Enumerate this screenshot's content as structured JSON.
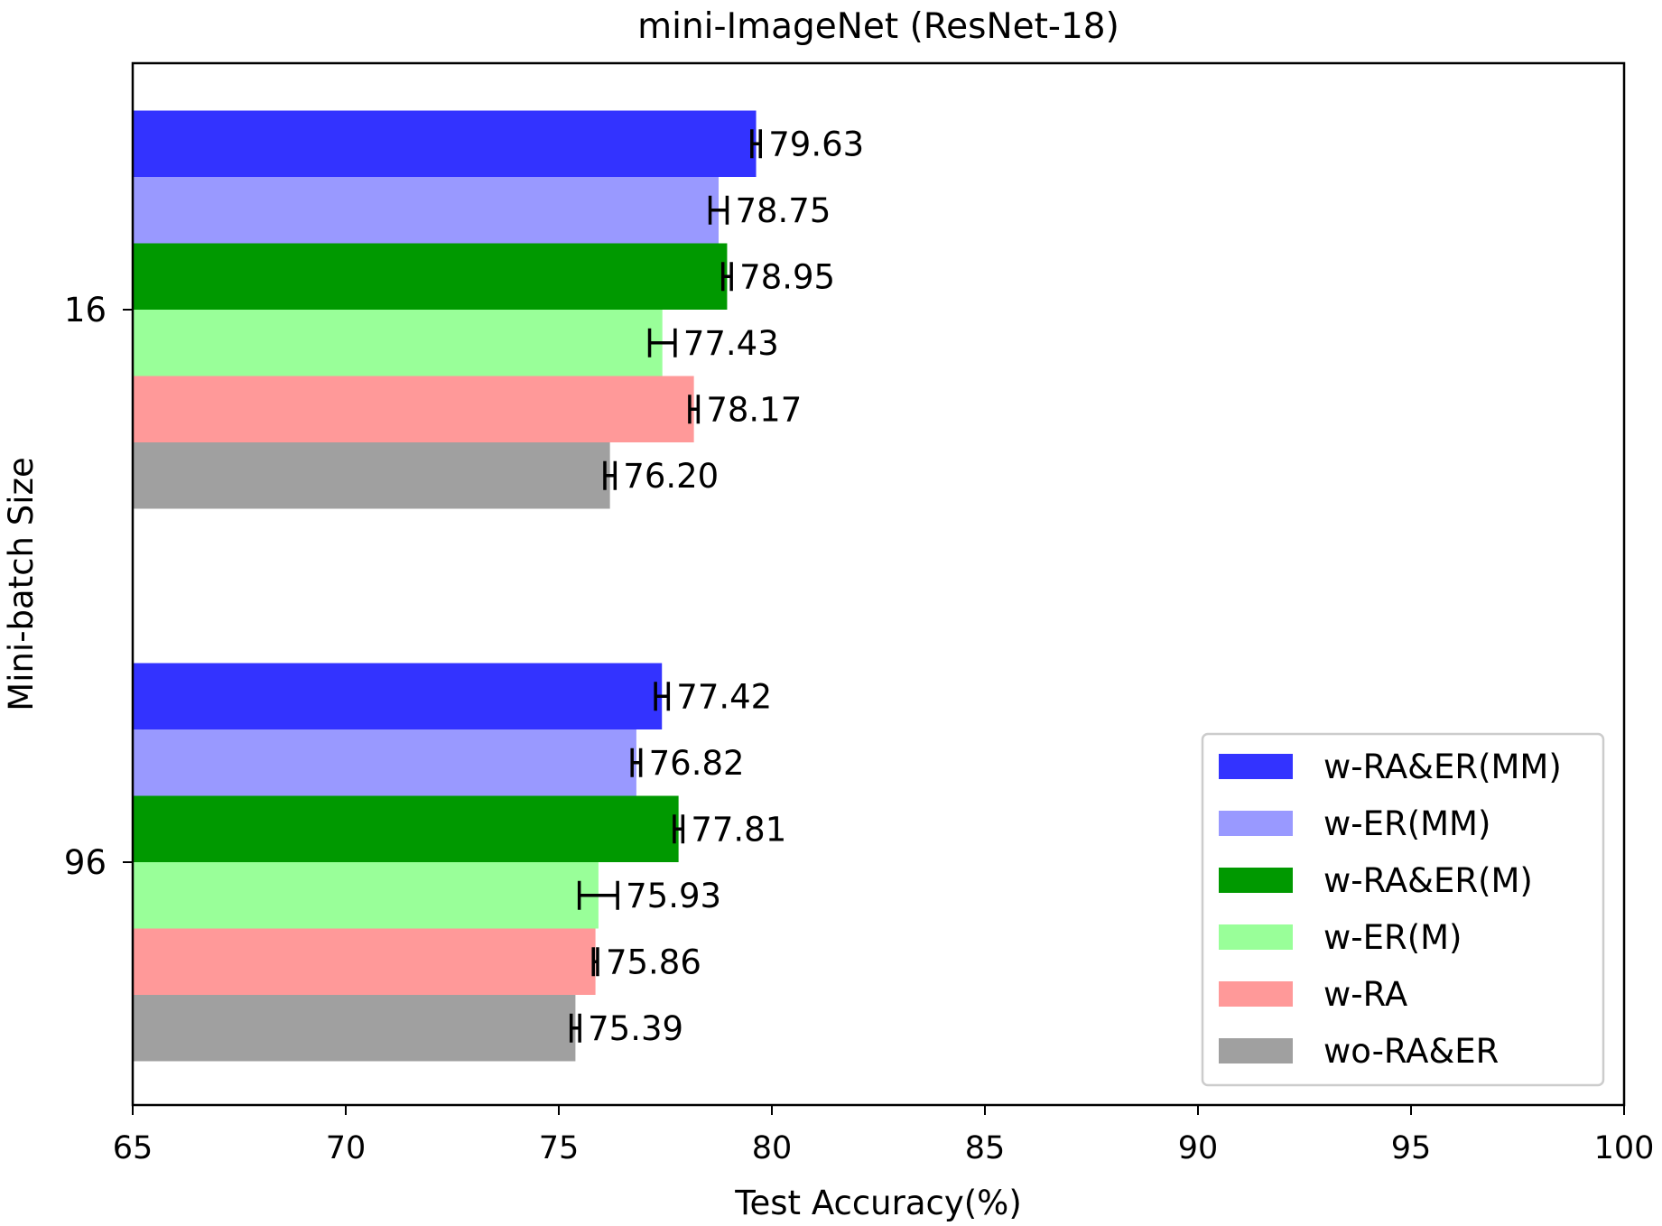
{
  "chart_data": {
    "type": "bar",
    "orientation": "horizontal",
    "title": "mini-ImageNet (ResNet-18)",
    "xlabel": "Test Accuracy(%)",
    "ylabel": "Mini-batch Size",
    "xlim": [
      65,
      100
    ],
    "xticks": [
      "65",
      "70",
      "75",
      "80",
      "85",
      "90",
      "95",
      "100"
    ],
    "categories": [
      "16",
      "96"
    ],
    "grid": false,
    "legend_position": "lower-right",
    "series": [
      {
        "name": "w-RA&ER(MM)",
        "color": "#3333ff",
        "values": [
          79.63,
          77.42
        ],
        "labels": [
          "79.63",
          "77.42"
        ],
        "errors": [
          0.1,
          0.15
        ]
      },
      {
        "name": "w-ER(MM)",
        "color": "#9999ff",
        "values": [
          78.75,
          76.82
        ],
        "labels": [
          "78.75",
          "76.82"
        ],
        "errors": [
          0.2,
          0.1
        ]
      },
      {
        "name": "w-RA&ER(M)",
        "color": "#009900",
        "values": [
          78.95,
          77.81
        ],
        "labels": [
          "78.95",
          "77.81"
        ],
        "errors": [
          0.1,
          0.1
        ]
      },
      {
        "name": "w-ER(M)",
        "color": "#99ff99",
        "values": [
          77.43,
          75.93
        ],
        "labels": [
          "77.43",
          "75.93"
        ],
        "errors": [
          0.3,
          0.45
        ]
      },
      {
        "name": "w-RA",
        "color": "#ff9999",
        "values": [
          78.17,
          75.86
        ],
        "labels": [
          "78.17",
          "75.86"
        ],
        "errors": [
          0.1,
          0.05
        ]
      },
      {
        "name": "wo-RA&ER",
        "color": "#a0a0a0",
        "values": [
          76.2,
          75.39
        ],
        "labels": [
          "76.20",
          "75.39"
        ],
        "errors": [
          0.12,
          0.1
        ]
      }
    ]
  }
}
